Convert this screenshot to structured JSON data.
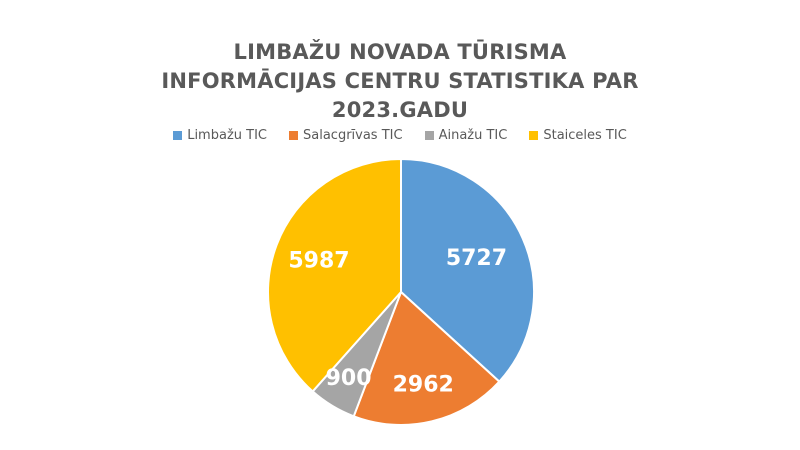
{
  "chart_data": {
    "type": "pie",
    "title_lines": [
      "LIMBAŽU NOVADA TŪRISMA",
      "INFORMĀCIJAS CENTRU STATISTIKA PAR",
      "2023.GADU"
    ],
    "legend_position": "top",
    "categories": [
      "Limbažu TIC",
      "Salacgrīvas TIC",
      "Ainažu TIC",
      "Staiceles TIC"
    ],
    "values": [
      5727,
      2962,
      900,
      5987
    ],
    "value_labels": [
      "5727",
      "2962",
      "900",
      "5987"
    ],
    "colors": [
      "#5B9BD5",
      "#ED7D31",
      "#A5A5A5",
      "#FFC000"
    ]
  }
}
